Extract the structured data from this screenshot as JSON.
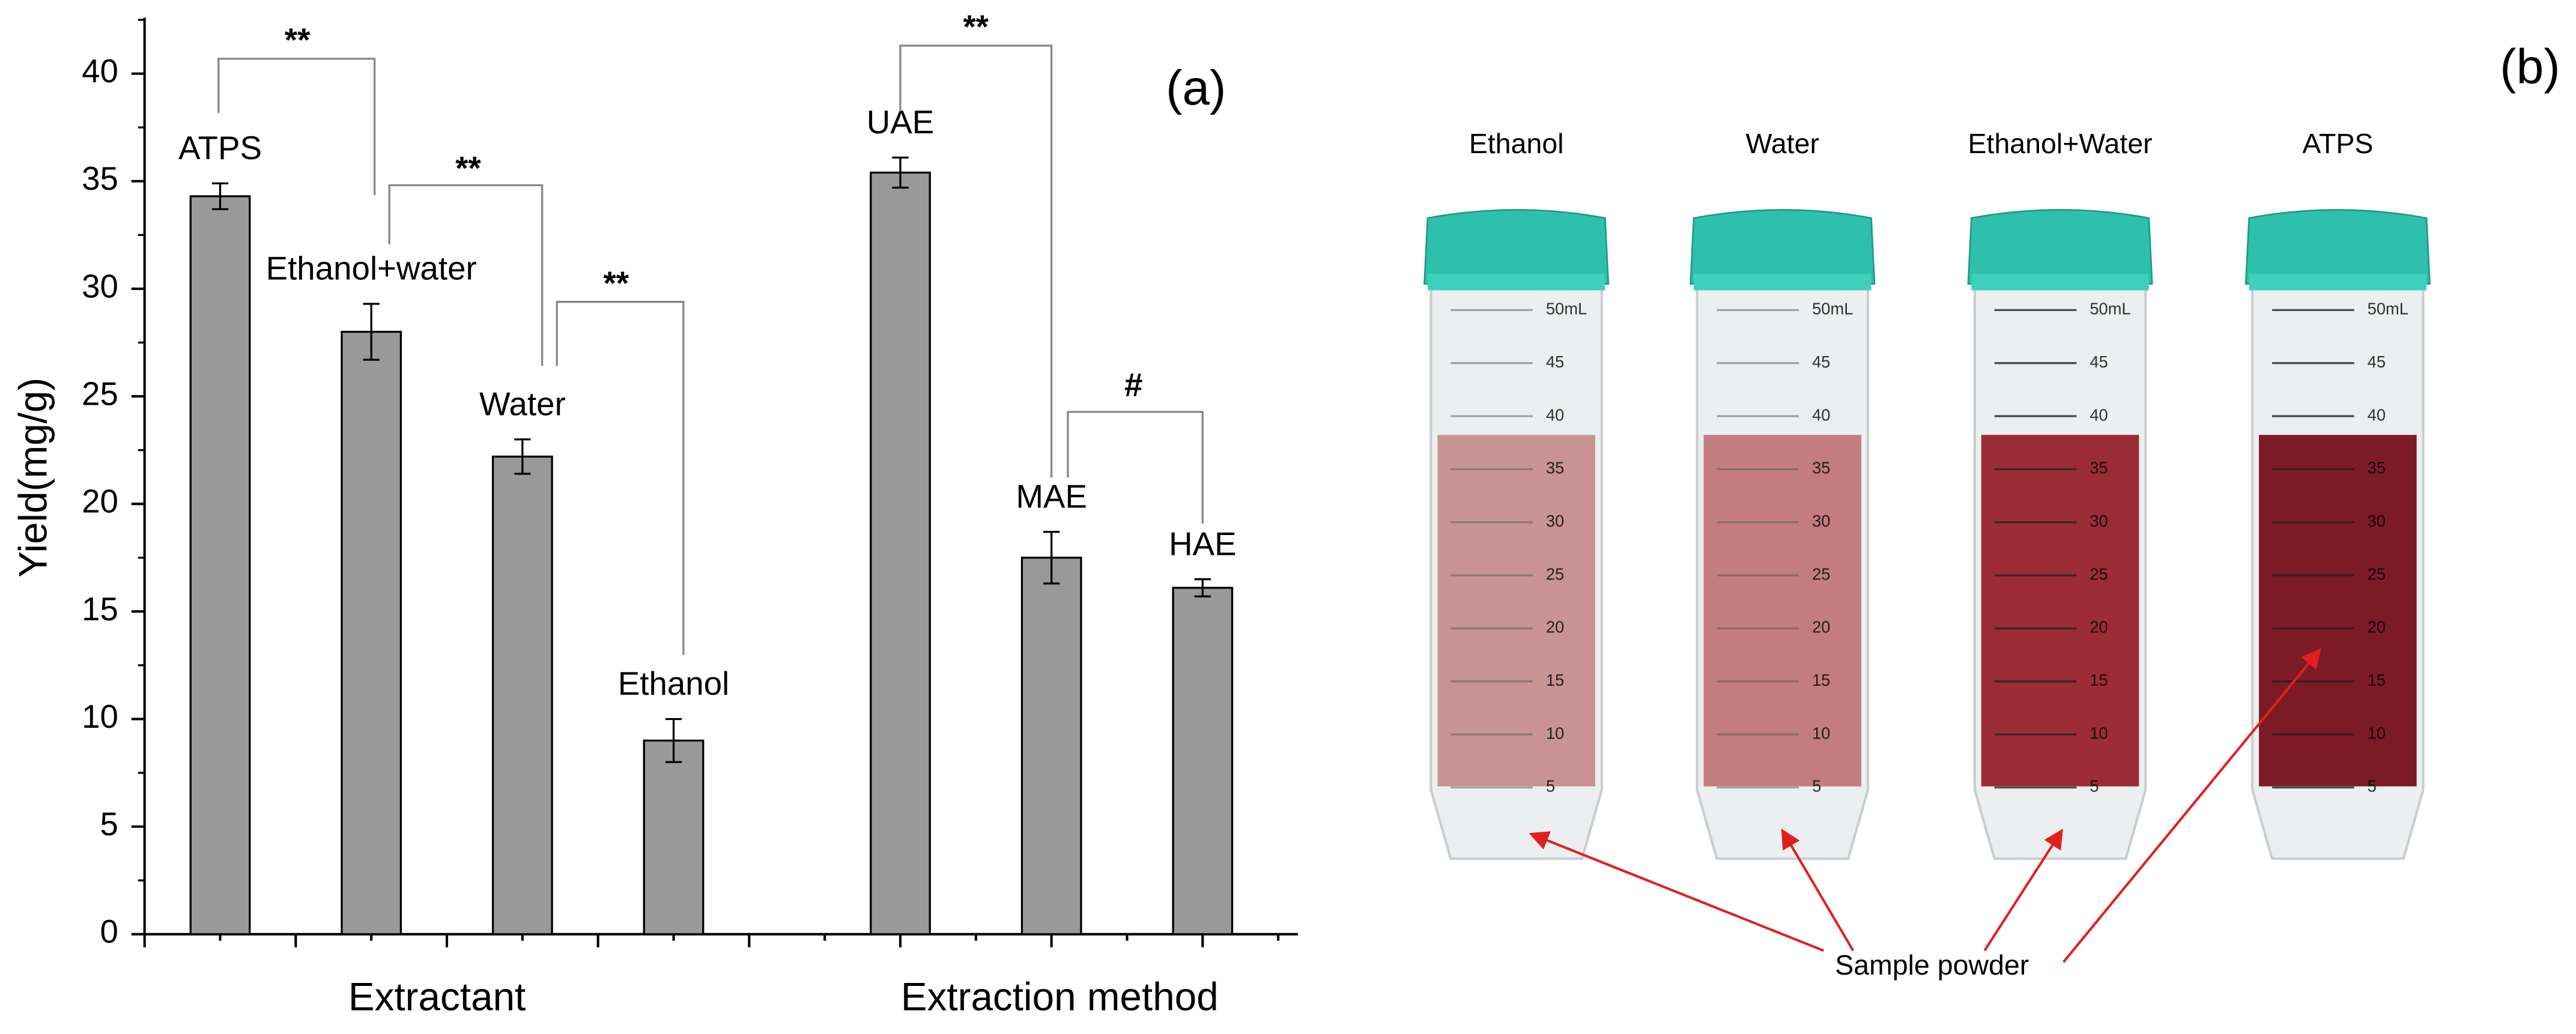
{
  "chart_data": {
    "type": "bar",
    "panel_label": "(a)",
    "y_label": "Yield(mg/g)",
    "categories": [
      "ATPS",
      "Ethanol+water",
      "Water",
      "Ethanol",
      "UAE",
      "MAE",
      "HAE"
    ],
    "x": [
      1,
      2,
      3,
      4,
      5.5,
      6.5,
      7.5
    ],
    "values": [
      34.3,
      28.0,
      22.2,
      9.0,
      35.4,
      17.5,
      16.1
    ],
    "errors": [
      0.6,
      1.3,
      0.8,
      1.0,
      0.7,
      1.2,
      0.4
    ],
    "color": "#999999",
    "groups": [
      "Extractant",
      "Extraction method"
    ],
    "significance": [
      "**",
      "**",
      "**",
      "**",
      "#"
    ],
    "xlim": [
      0.5,
      8.13
    ],
    "xticks": [
      0.5,
      1,
      1.5,
      2,
      2.5,
      3,
      3.5,
      4,
      4.5,
      5,
      5.5,
      6,
      6.5,
      7,
      7.5,
      8
    ],
    "ylim": [
      0,
      42.6
    ],
    "yticks": [
      0,
      5,
      10,
      15,
      20,
      25,
      30,
      35,
      40
    ]
  },
  "photo": {
    "panel_label": "(b)",
    "tubes": [
      "Ethanol",
      "Water",
      "Ethanol+Water",
      "ATPS"
    ],
    "scale": [
      "50mL",
      "45",
      "40",
      "35",
      "30",
      "25",
      "20",
      "15",
      "10",
      "5"
    ],
    "annotation": "Sample powder"
  }
}
